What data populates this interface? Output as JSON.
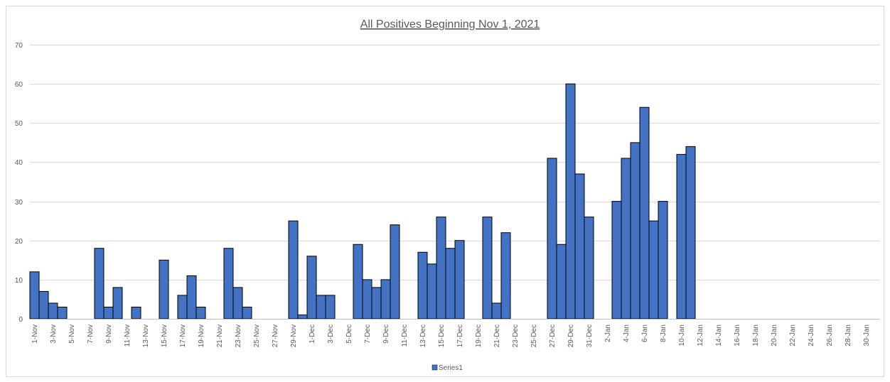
{
  "chart_data": {
    "type": "bar",
    "title": "All Positives Beginning Nov 1, 2021",
    "xlabel": "",
    "ylabel": "",
    "ylim": [
      0,
      70
    ],
    "yticks": [
      0,
      10,
      20,
      30,
      40,
      50,
      60,
      70
    ],
    "grid": true,
    "legend_position": "bottom",
    "bar_color": "#4472C4",
    "categories": [
      "1-Nov",
      "2-Nov",
      "3-Nov",
      "4-Nov",
      "5-Nov",
      "6-Nov",
      "7-Nov",
      "8-Nov",
      "9-Nov",
      "10-Nov",
      "11-Nov",
      "12-Nov",
      "13-Nov",
      "14-Nov",
      "15-Nov",
      "16-Nov",
      "17-Nov",
      "18-Nov",
      "19-Nov",
      "20-Nov",
      "21-Nov",
      "22-Nov",
      "23-Nov",
      "24-Nov",
      "25-Nov",
      "26-Nov",
      "27-Nov",
      "28-Nov",
      "29-Nov",
      "30-Nov",
      "1-Dec",
      "2-Dec",
      "3-Dec",
      "4-Dec",
      "5-Dec",
      "6-Dec",
      "7-Dec",
      "8-Dec",
      "9-Dec",
      "10-Dec",
      "11-Dec",
      "12-Dec",
      "13-Dec",
      "14-Dec",
      "15-Dec",
      "16-Dec",
      "17-Dec",
      "18-Dec",
      "19-Dec",
      "20-Dec",
      "21-Dec",
      "22-Dec",
      "23-Dec",
      "24-Dec",
      "25-Dec",
      "26-Dec",
      "27-Dec",
      "28-Dec",
      "29-Dec",
      "30-Dec",
      "31-Dec",
      "1-Jan",
      "2-Jan",
      "3-Jan",
      "4-Jan",
      "5-Jan",
      "6-Jan",
      "7-Jan",
      "8-Jan",
      "9-Jan",
      "10-Jan",
      "11-Jan",
      "12-Jan",
      "13-Jan",
      "14-Jan",
      "15-Jan",
      "16-Jan",
      "17-Jan",
      "18-Jan",
      "19-Jan",
      "20-Jan",
      "21-Jan",
      "22-Jan",
      "23-Jan",
      "24-Jan",
      "25-Jan",
      "26-Jan",
      "27-Jan",
      "28-Jan",
      "29-Jan",
      "30-Jan",
      "31-Jan"
    ],
    "series": [
      {
        "name": "Series1",
        "values": [
          12,
          7,
          4,
          3,
          0,
          0,
          0,
          18,
          3,
          8,
          0,
          3,
          0,
          0,
          15,
          0,
          6,
          11,
          3,
          0,
          0,
          18,
          8,
          3,
          0,
          0,
          0,
          0,
          25,
          1,
          16,
          6,
          6,
          0,
          0,
          19,
          10,
          8,
          10,
          24,
          0,
          0,
          17,
          14,
          26,
          18,
          20,
          0,
          0,
          26,
          4,
          22,
          0,
          0,
          0,
          0,
          41,
          19,
          60,
          37,
          26,
          0,
          0,
          30,
          41,
          45,
          54,
          25,
          30,
          0,
          42,
          44,
          0,
          0,
          0,
          0,
          0,
          0,
          0,
          0,
          0,
          0,
          0,
          0,
          0,
          0,
          0,
          0,
          0,
          0,
          0,
          0
        ]
      }
    ],
    "legend": [
      "Series1"
    ]
  }
}
